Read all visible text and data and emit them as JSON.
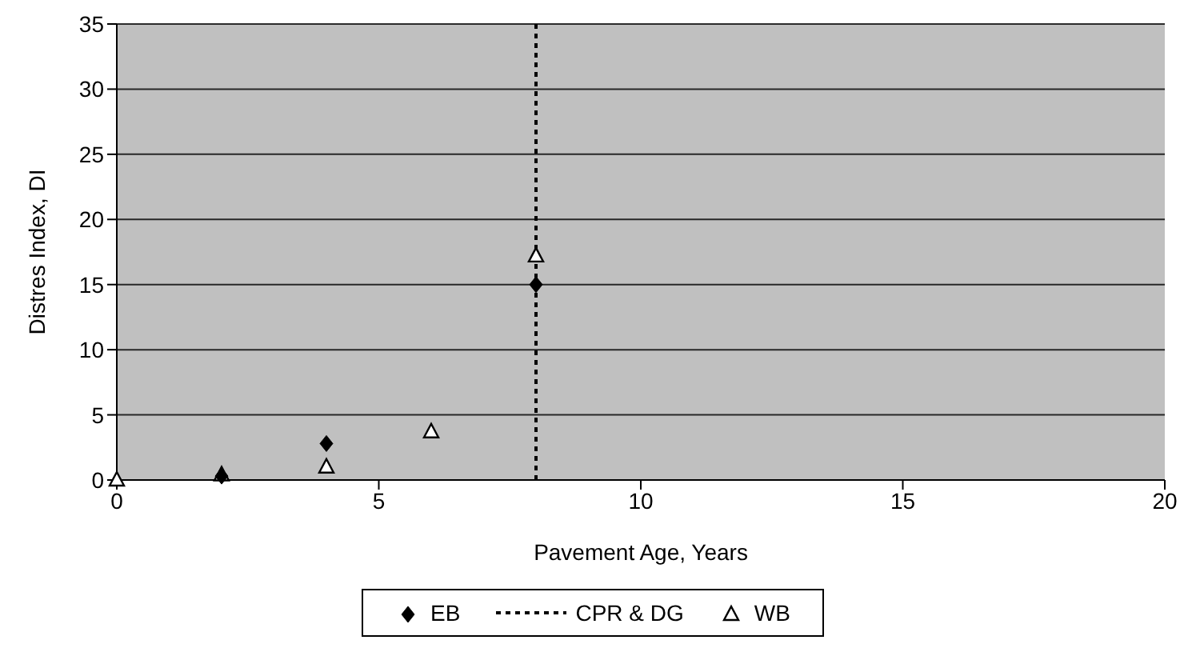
{
  "chart_data": {
    "type": "scatter",
    "xlabel": "Pavement Age, Years",
    "ylabel": "Distres Index, DI",
    "xlim": [
      0,
      20
    ],
    "xticks": [
      0,
      5,
      10,
      15,
      20
    ],
    "ylim": [
      0,
      35
    ],
    "yticks": [
      0,
      5,
      10,
      15,
      20,
      25,
      30,
      35
    ],
    "grid": "y",
    "legend": "bottom",
    "series": [
      {
        "name": "EB",
        "marker": "diamond",
        "color": "#000000",
        "x": [
          2,
          4,
          8
        ],
        "values": [
          0.3,
          2.8,
          15
        ]
      },
      {
        "name": "CPR & DG",
        "type": "line",
        "line_style": "dotted",
        "marker": "none",
        "color": "#000000",
        "x": [
          8,
          8
        ],
        "values": [
          0,
          35
        ]
      },
      {
        "name": "WB",
        "marker": "triangle",
        "color": "#ffffff",
        "x": [
          0,
          2,
          4,
          6,
          8
        ],
        "values": [
          0,
          0.4,
          1,
          3.7,
          17.2
        ]
      }
    ]
  }
}
